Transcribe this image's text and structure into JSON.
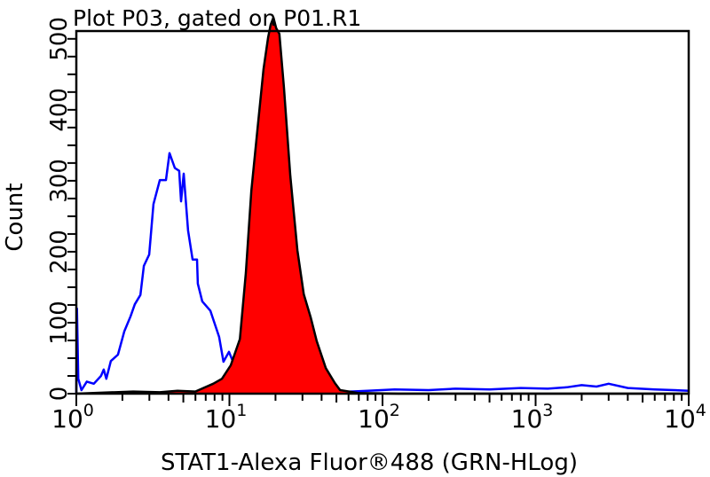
{
  "chart_data": {
    "type": "area",
    "title": "Plot P03, gated on P01.R1",
    "xlabel": "STAT1-Alexa Fluor®488 (GRN-HLog)",
    "ylabel": "Count",
    "xscale": "log",
    "xlim": [
      1,
      10000
    ],
    "ylim": [
      0,
      511
    ],
    "grid": false,
    "x_ticks": [
      {
        "base": "10",
        "exp": "0",
        "value": 1
      },
      {
        "base": "10",
        "exp": "1",
        "value": 10
      },
      {
        "base": "10",
        "exp": "2",
        "value": 100
      },
      {
        "base": "10",
        "exp": "3",
        "value": 1000
      },
      {
        "base": "10",
        "exp": "4",
        "value": 10000
      }
    ],
    "y_ticks": [
      "0",
      "100",
      "200",
      "300",
      "400",
      "500"
    ],
    "series": [
      {
        "style": "line",
        "color": "#0000ff",
        "x": [
          1.0,
          1.01,
          1.03,
          1.08,
          1.17,
          1.3,
          1.45,
          1.51,
          1.57,
          1.68,
          1.87,
          2.06,
          2.26,
          2.41,
          2.62,
          2.76,
          2.99,
          3.19,
          3.51,
          3.85,
          4.06,
          4.4,
          4.7,
          4.83,
          5.03,
          5.37,
          5.75,
          6.14,
          6.22,
          6.65,
          7.51,
          8.57,
          9.15,
          9.94,
          10.5,
          12,
          15,
          20,
          30,
          50,
          80,
          120,
          200,
          300,
          500,
          800,
          1200,
          1600,
          2000,
          2500,
          3000,
          4000,
          6000,
          8000,
          10000
        ],
        "y": [
          0,
          120,
          21,
          5,
          17,
          14,
          25,
          34,
          21,
          46,
          55,
          88,
          109,
          126,
          139,
          180,
          196,
          267,
          301,
          301,
          339,
          318,
          314,
          271,
          310,
          230,
          189,
          189,
          155,
          130,
          117,
          80,
          45,
          59,
          46,
          10,
          2,
          1,
          1,
          2,
          4,
          6,
          5,
          7,
          6,
          8,
          7,
          9,
          12,
          10,
          14,
          8,
          6,
          5,
          4
        ]
      },
      {
        "style": "filled",
        "color": "#ff0000",
        "outline": "#000000",
        "x": [
          1.0,
          2.35,
          3.51,
          4.58,
          5.99,
          7.83,
          8.94,
          10.2,
          11.7,
          12.8,
          13.9,
          15.2,
          16.7,
          17.9,
          18.6,
          19.4,
          20.2,
          21.2,
          22.7,
          25.0,
          27.8,
          30.6,
          34.0,
          37.2,
          42.6,
          48.8,
          52.8,
          69,
          128,
          10000
        ],
        "y": [
          0,
          3,
          2,
          4,
          3,
          14,
          21,
          40,
          77,
          170,
          286,
          370,
          457,
          502,
          520,
          530,
          515,
          507,
          432,
          307,
          202,
          140,
          107,
          74,
          36,
          15,
          5,
          1,
          0,
          0
        ]
      }
    ]
  }
}
